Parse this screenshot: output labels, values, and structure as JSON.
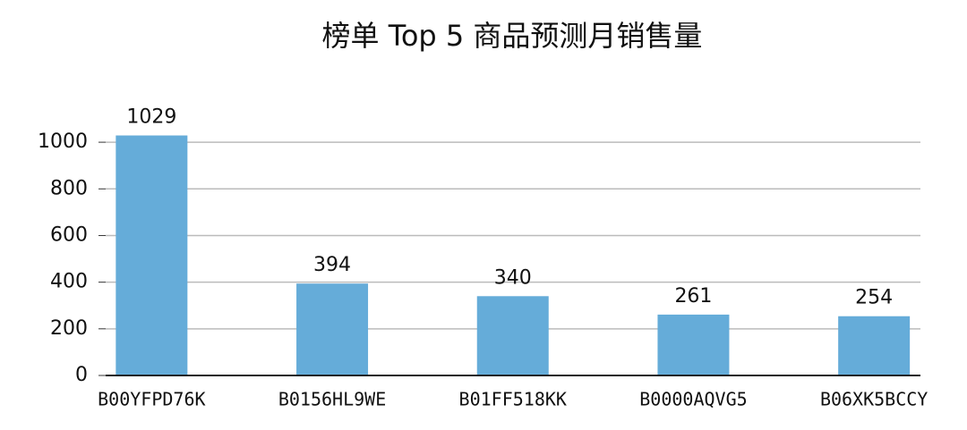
{
  "chart_data": {
    "type": "bar",
    "title": "榜单 Top 5 商品预测月销售量",
    "categories": [
      "B00YFPD76K",
      "B0156HL9WE",
      "B01FF518KK",
      "B0000AQVG5",
      "B06XK5BCCY"
    ],
    "values": [
      1029,
      394,
      340,
      261,
      254
    ],
    "color": "#65acd9",
    "ylim": [
      0,
      1100
    ],
    "yticks": [
      0,
      200,
      400,
      600,
      800,
      1000
    ],
    "grid": true
  }
}
